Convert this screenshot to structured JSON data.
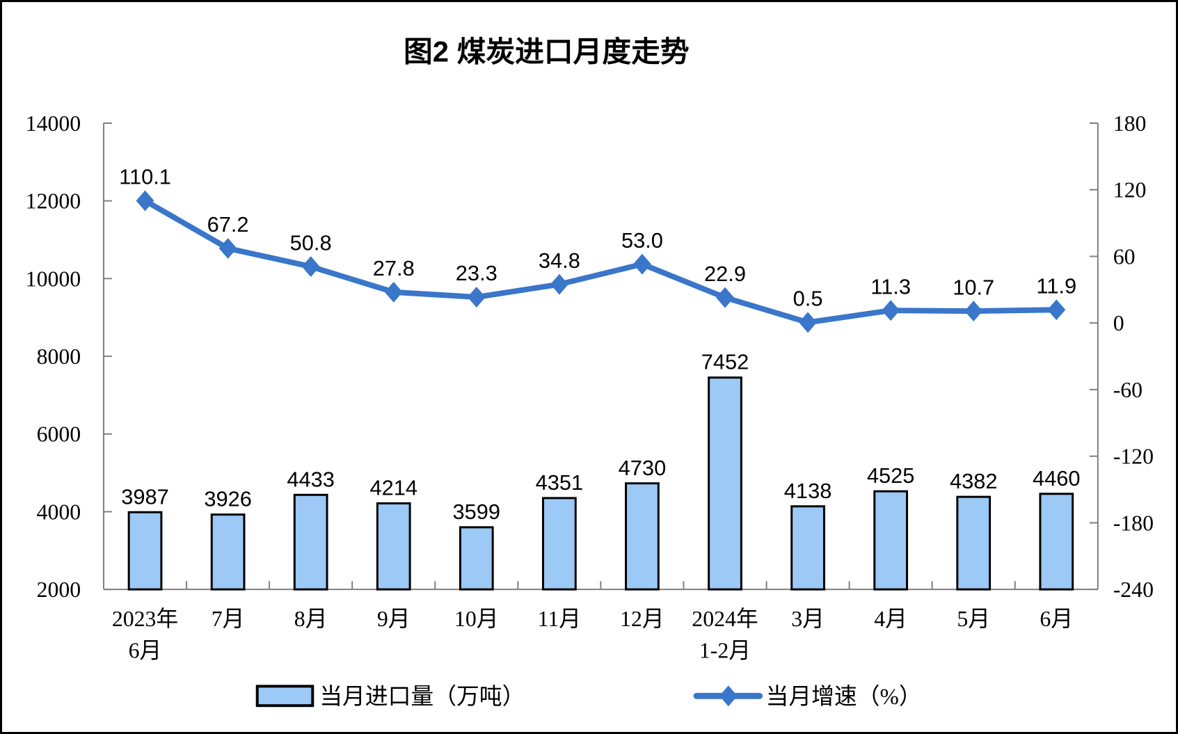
{
  "chart_data": {
    "type": "combo",
    "title": "图2 煤炭进口月度走势",
    "categories": [
      [
        "2023年",
        "6月"
      ],
      [
        "7月"
      ],
      [
        "8月"
      ],
      [
        "9月"
      ],
      [
        "10月"
      ],
      [
        "11月"
      ],
      [
        "12月"
      ],
      [
        "2024年",
        "1-2月"
      ],
      [
        "3月"
      ],
      [
        "4月"
      ],
      [
        "5月"
      ],
      [
        "6月"
      ]
    ],
    "series": [
      {
        "name": "当月进口量（万吨）",
        "type": "bar",
        "axis": "left",
        "color": "#9CC9F5",
        "border_color": "#000000",
        "values": [
          3987,
          3926,
          4433,
          4214,
          3599,
          4351,
          4730,
          7452,
          4138,
          4525,
          4382,
          4460
        ],
        "labels": [
          "3987",
          "3926",
          "4433",
          "4214",
          "3599",
          "4351",
          "4730",
          "7452",
          "4138",
          "4525",
          "4382",
          "4460"
        ]
      },
      {
        "name": "当月增速（%）",
        "type": "line",
        "axis": "right",
        "color": "#3A76C9",
        "marker": "diamond",
        "values": [
          110.1,
          67.2,
          50.8,
          27.8,
          23.3,
          34.8,
          53.0,
          22.9,
          0.5,
          11.3,
          10.7,
          11.9
        ],
        "labels": [
          "110.1",
          "67.2",
          "50.8",
          "27.8",
          "23.3",
          "34.8",
          "53.0",
          "22.9",
          "0.5",
          "11.3",
          "10.7",
          "11.9"
        ]
      }
    ],
    "left_axis": {
      "min": 2000,
      "max": 14000,
      "step": 2000,
      "ticks": [
        14000,
        12000,
        10000,
        8000,
        6000,
        4000,
        2000
      ]
    },
    "right_axis": {
      "min": -240,
      "max": 180,
      "step": 60,
      "ticks": [
        180,
        120,
        60,
        0,
        -60,
        -120,
        -180,
        -240
      ]
    },
    "grid": false,
    "legend_position": "bottom",
    "axis_color": "#7f7f7f",
    "text_color": "#000000"
  }
}
